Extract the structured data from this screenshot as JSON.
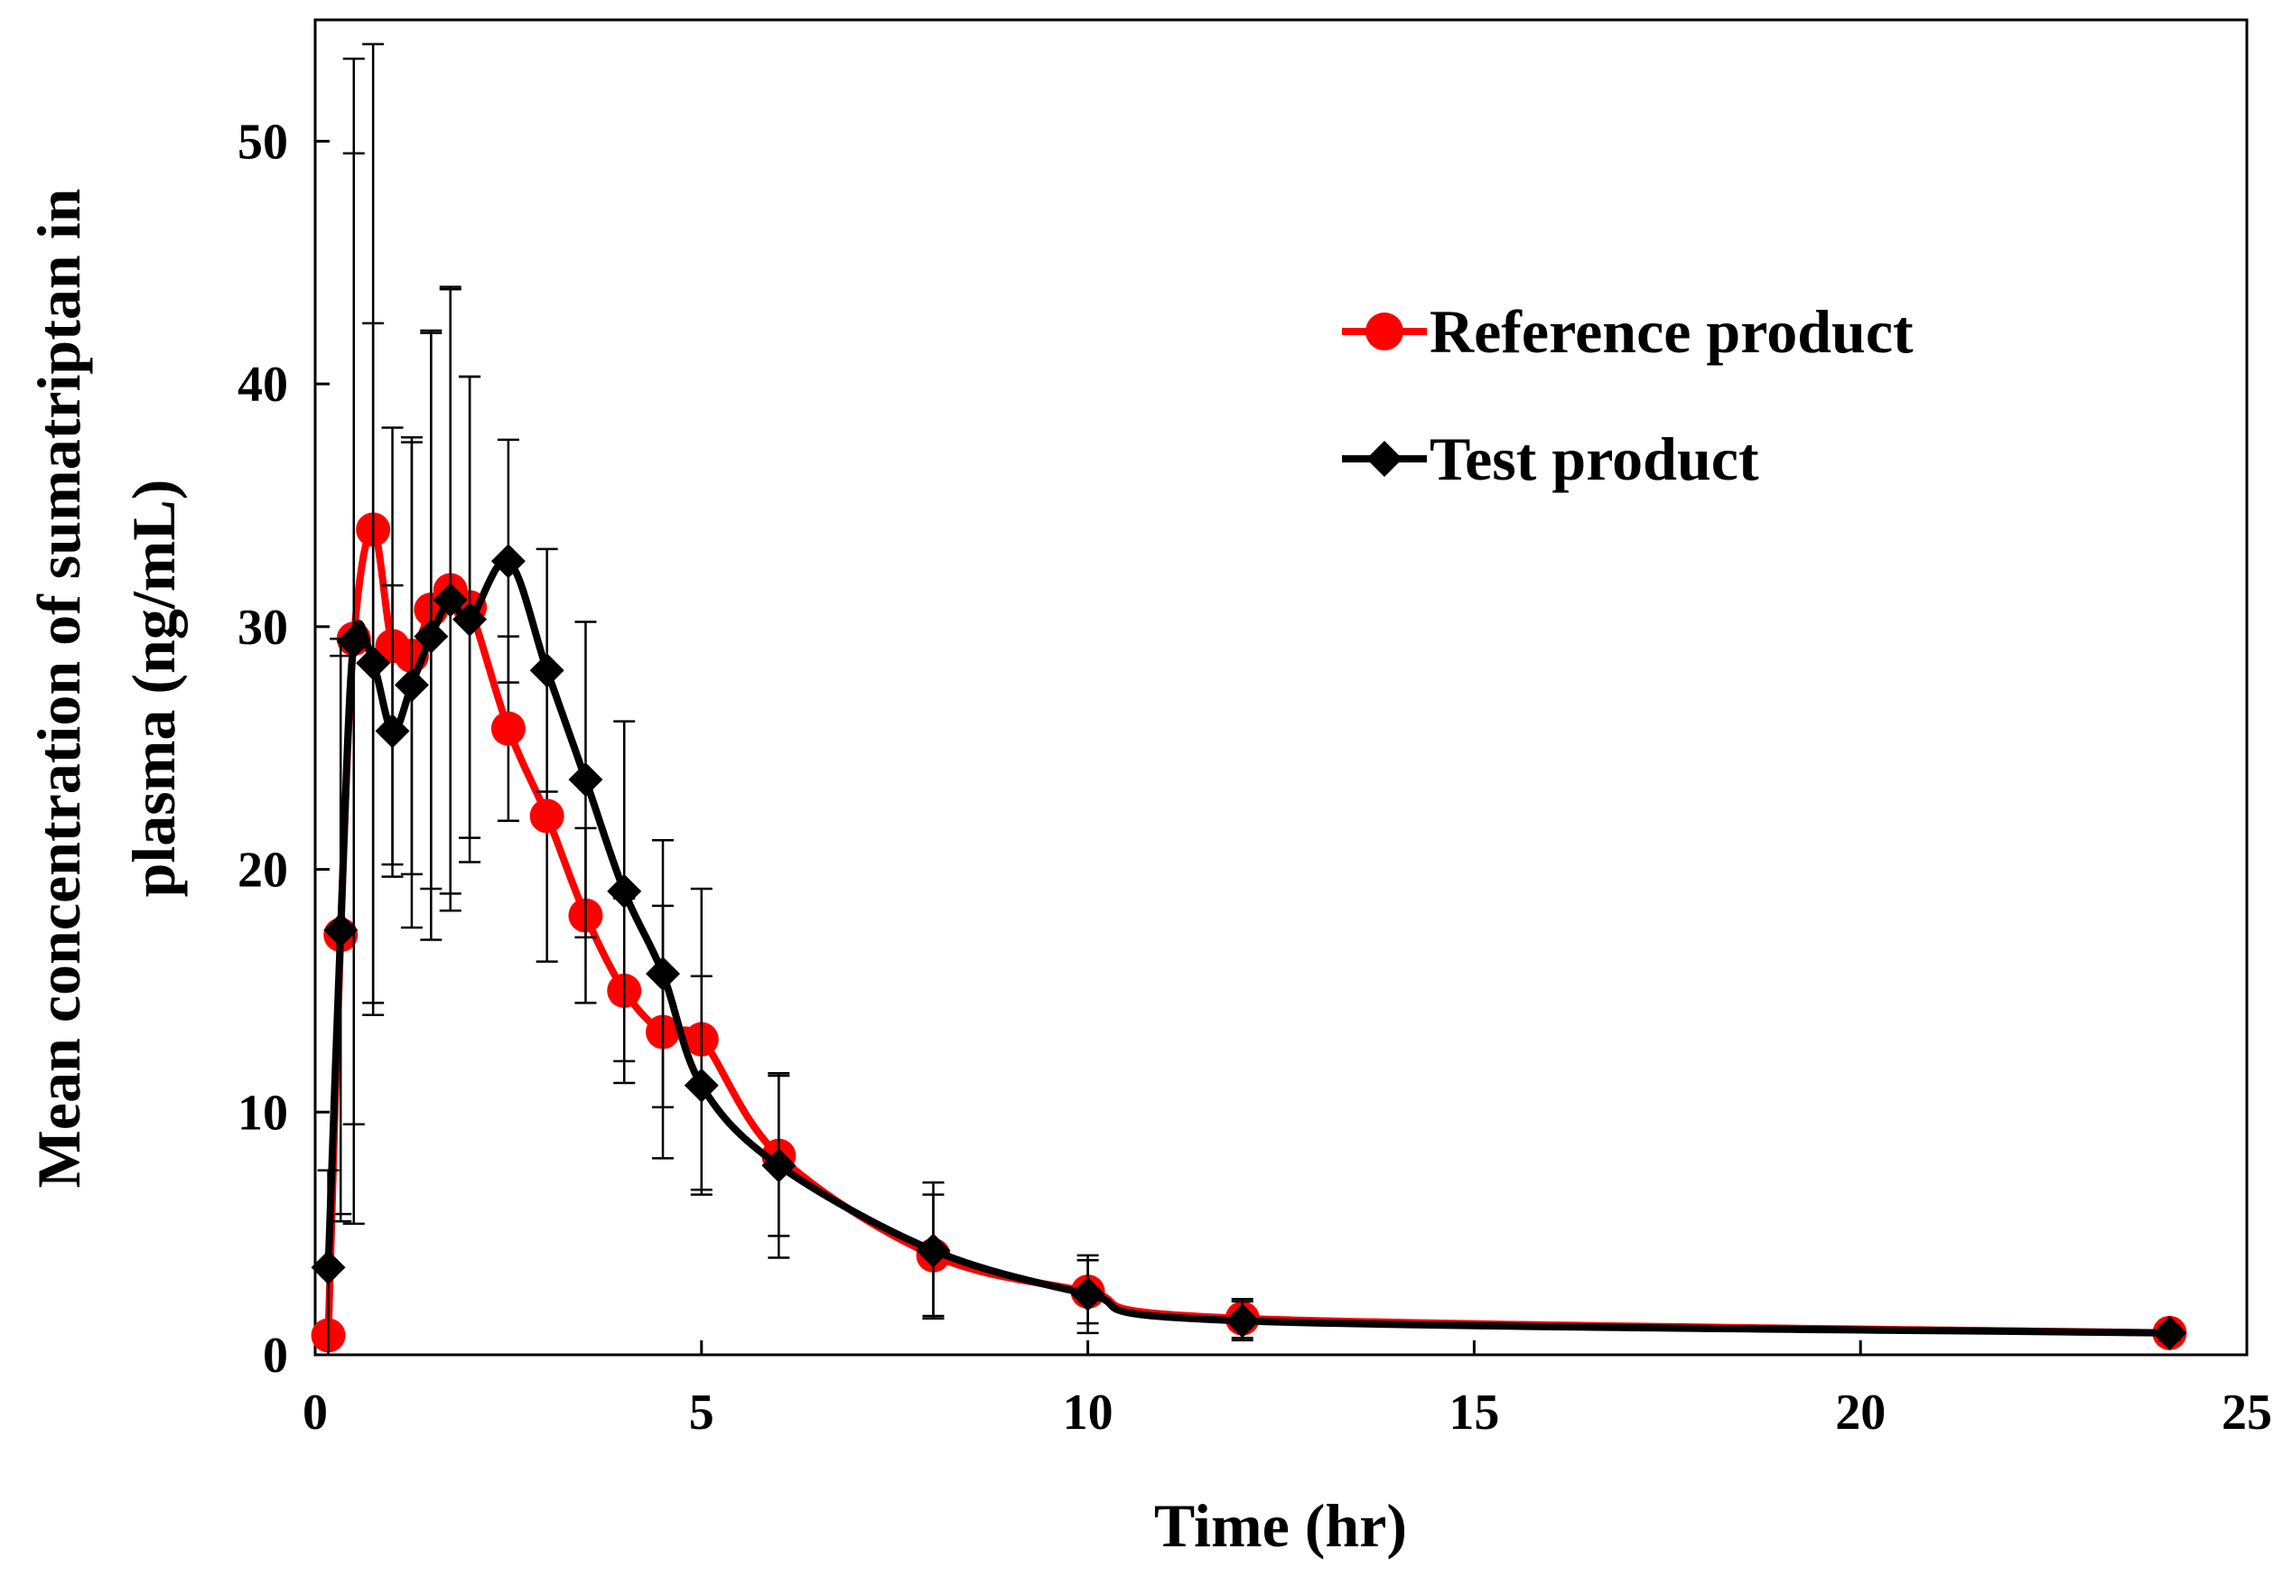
{
  "chart_data": {
    "type": "line",
    "title": "",
    "xlabel": "Time (hr)",
    "ylabel": [
      "Mean concentration of sumatriptan in",
      "plasma (ng/mL)"
    ],
    "xlim": [
      0,
      25
    ],
    "ylim": [
      0,
      55
    ],
    "xticks": [
      0,
      5,
      10,
      15,
      20,
      25
    ],
    "yticks": [
      0,
      10,
      20,
      30,
      40,
      50
    ],
    "grid": false,
    "legend_position": "top-right",
    "series": [
      {
        "name": "Reference product",
        "color": "#ff0000",
        "marker": "circle",
        "x": [
          0.17,
          0.33,
          0.5,
          0.75,
          1.0,
          1.25,
          1.5,
          1.75,
          2.0,
          2.5,
          3.0,
          3.5,
          4.0,
          4.5,
          5.0,
          6.0,
          8.0,
          10.0,
          12.0,
          24.0
        ],
        "values": [
          0.8,
          17.3,
          29.5,
          34.0,
          29.2,
          28.8,
          30.7,
          31.5,
          30.8,
          25.8,
          22.2,
          18.1,
          15.0,
          13.3,
          13.0,
          8.2,
          4.1,
          2.6,
          1.5,
          0.9
        ],
        "error": [
          0.5,
          11.5,
          20.0,
          20.0,
          9.0,
          9.0,
          11.5,
          12.5,
          9.5,
          3.8,
          6.0,
          3.6,
          3.8,
          5.2,
          6.2,
          3.3,
          2.5,
          1.3,
          0.8,
          0.3
        ]
      },
      {
        "name": "Test product",
        "color": "#000000",
        "marker": "diamond",
        "x": [
          0.17,
          0.33,
          0.5,
          0.75,
          1.0,
          1.25,
          1.5,
          1.75,
          2.0,
          2.5,
          3.0,
          3.5,
          4.0,
          4.5,
          5.0,
          6.0,
          8.0,
          10.0,
          12.0,
          24.0
        ],
        "values": [
          3.6,
          17.5,
          29.4,
          28.5,
          25.7,
          27.6,
          29.6,
          31.1,
          30.3,
          32.7,
          28.2,
          23.7,
          19.1,
          15.7,
          11.1,
          7.8,
          4.3,
          2.5,
          1.4,
          0.9
        ],
        "error": [
          4.0,
          12.0,
          24.0,
          14.0,
          6.0,
          10.0,
          12.5,
          12.8,
          10.0,
          5.0,
          5.0,
          6.5,
          7.0,
          5.5,
          4.5,
          3.8,
          2.8,
          1.6,
          0.8,
          0.3
        ]
      }
    ]
  }
}
